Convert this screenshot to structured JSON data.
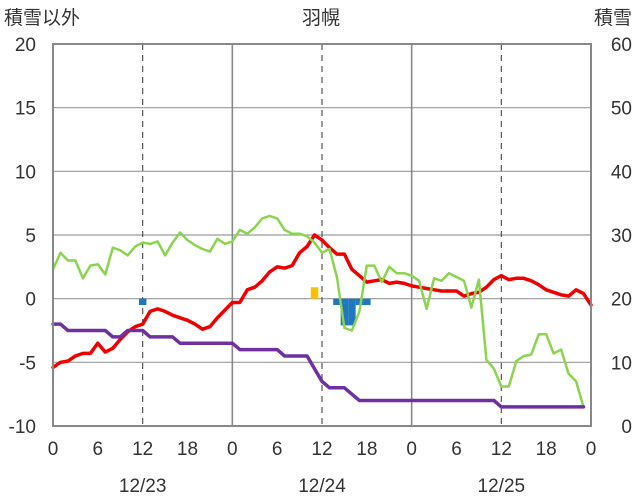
{
  "chart_data": {
    "type": "line",
    "title": "羽幌",
    "left_axis_label": "積雪以外",
    "right_axis_label": "積雪",
    "left_ylim": [
      -10,
      20
    ],
    "right_ylim": [
      0,
      60
    ],
    "left_ticks": [
      "-10",
      "-5",
      "0",
      "5",
      "10",
      "15",
      "20"
    ],
    "right_ticks": [
      "0",
      "10",
      "20",
      "30",
      "40",
      "50",
      "60"
    ],
    "xlim": [
      0,
      72
    ],
    "x_ticks": [
      0,
      6,
      12,
      18,
      24,
      30,
      36,
      42,
      48,
      54,
      60,
      66,
      72
    ],
    "x_tick_labels": [
      "0",
      "6",
      "12",
      "18",
      "0",
      "6",
      "12",
      "18",
      "0",
      "6",
      "12",
      "18",
      "0"
    ],
    "date_labels": [
      {
        "x": 12,
        "text": "12/23"
      },
      {
        "x": 36,
        "text": "12/24"
      },
      {
        "x": 60,
        "text": "12/25"
      }
    ],
    "grid": {
      "major_x": [
        24,
        48
      ],
      "dashed_x": [
        12,
        36,
        60
      ],
      "horizontal": true
    },
    "series": [
      {
        "axis": "left",
        "color": "#ee0000",
        "width": 3.5,
        "points": [
          [
            0,
            -5.4
          ],
          [
            1,
            -5.0
          ],
          [
            2,
            -4.9
          ],
          [
            3,
            -4.5
          ],
          [
            4,
            -4.3
          ],
          [
            5,
            -4.3
          ],
          [
            6,
            -3.5
          ],
          [
            7,
            -4.2
          ],
          [
            8,
            -3.9
          ],
          [
            9,
            -3.2
          ],
          [
            10,
            -2.6
          ],
          [
            11,
            -2.2
          ],
          [
            12,
            -2.0
          ],
          [
            13,
            -1.0
          ],
          [
            14,
            -0.8
          ],
          [
            15,
            -1.0
          ],
          [
            16,
            -1.3
          ],
          [
            17,
            -1.5
          ],
          [
            18,
            -1.7
          ],
          [
            19,
            -2.0
          ],
          [
            20,
            -2.4
          ],
          [
            21,
            -2.2
          ],
          [
            22,
            -1.5
          ],
          [
            23,
            -0.9
          ],
          [
            24,
            -0.3
          ],
          [
            25,
            -0.3
          ],
          [
            26,
            0.7
          ],
          [
            27,
            0.9
          ],
          [
            28,
            1.4
          ],
          [
            29,
            2.1
          ],
          [
            30,
            2.5
          ],
          [
            31,
            2.4
          ],
          [
            32,
            2.6
          ],
          [
            33,
            3.6
          ],
          [
            34,
            4.1
          ],
          [
            35,
            5.0
          ],
          [
            36,
            4.6
          ],
          [
            37,
            4.0
          ],
          [
            38,
            3.5
          ],
          [
            39,
            3.5
          ],
          [
            40,
            2.3
          ],
          [
            41,
            1.8
          ],
          [
            42,
            1.3
          ],
          [
            43,
            1.4
          ],
          [
            44,
            1.5
          ],
          [
            45,
            1.2
          ],
          [
            46,
            1.3
          ],
          [
            47,
            1.2
          ],
          [
            48,
            1.0
          ],
          [
            49,
            0.9
          ],
          [
            50,
            0.8
          ],
          [
            51,
            0.7
          ],
          [
            52,
            0.6
          ],
          [
            53,
            0.6
          ],
          [
            54,
            0.6
          ],
          [
            55,
            0.2
          ],
          [
            56,
            0.4
          ],
          [
            57,
            0.5
          ],
          [
            58,
            0.9
          ],
          [
            59,
            1.5
          ],
          [
            60,
            1.8
          ],
          [
            61,
            1.5
          ],
          [
            62,
            1.6
          ],
          [
            63,
            1.6
          ],
          [
            64,
            1.4
          ],
          [
            65,
            1.1
          ],
          [
            66,
            0.7
          ],
          [
            67,
            0.5
          ],
          [
            68,
            0.3
          ],
          [
            69,
            0.2
          ],
          [
            70,
            0.7
          ],
          [
            71,
            0.4
          ],
          [
            72,
            -0.5
          ]
        ]
      },
      {
        "axis": "left",
        "color": "#8bd44e",
        "width": 2.5,
        "points": [
          [
            0,
            2.3
          ],
          [
            1,
            3.6
          ],
          [
            2,
            3.0
          ],
          [
            3,
            3.0
          ],
          [
            4,
            1.6
          ],
          [
            5,
            2.6
          ],
          [
            6,
            2.7
          ],
          [
            7,
            1.9
          ],
          [
            8,
            4.0
          ],
          [
            9,
            3.8
          ],
          [
            10,
            3.4
          ],
          [
            11,
            4.1
          ],
          [
            12,
            4.4
          ],
          [
            13,
            4.3
          ],
          [
            14,
            4.5
          ],
          [
            15,
            3.4
          ],
          [
            16,
            4.4
          ],
          [
            17,
            5.2
          ],
          [
            18,
            4.6
          ],
          [
            19,
            4.2
          ],
          [
            20,
            3.9
          ],
          [
            21,
            3.7
          ],
          [
            22,
            4.7
          ],
          [
            23,
            4.3
          ],
          [
            24,
            4.5
          ],
          [
            25,
            5.4
          ],
          [
            26,
            5.1
          ],
          [
            27,
            5.6
          ],
          [
            28,
            6.3
          ],
          [
            29,
            6.5
          ],
          [
            30,
            6.3
          ],
          [
            31,
            5.4
          ],
          [
            32,
            5.1
          ],
          [
            33,
            5.1
          ],
          [
            34,
            4.9
          ],
          [
            35,
            4.4
          ],
          [
            36,
            3.6
          ],
          [
            37,
            3.9
          ],
          [
            38,
            1.7
          ],
          [
            39,
            -2.3
          ],
          [
            40,
            -2.5
          ],
          [
            41,
            -1.0
          ],
          [
            42,
            2.6
          ],
          [
            43,
            2.6
          ],
          [
            44,
            1.3
          ],
          [
            45,
            2.5
          ],
          [
            46,
            2.0
          ],
          [
            47,
            2.0
          ],
          [
            48,
            1.8
          ],
          [
            49,
            1.4
          ],
          [
            50,
            -0.8
          ],
          [
            51,
            1.6
          ],
          [
            52,
            1.4
          ],
          [
            53,
            2.0
          ],
          [
            54,
            1.7
          ],
          [
            55,
            1.4
          ],
          [
            56,
            -0.7
          ],
          [
            57,
            1.5
          ],
          [
            58,
            -4.8
          ],
          [
            59,
            -5.5
          ],
          [
            60,
            -6.9
          ],
          [
            61,
            -6.9
          ],
          [
            62,
            -4.9
          ],
          [
            63,
            -4.5
          ],
          [
            64,
            -4.4
          ],
          [
            65,
            -2.8
          ],
          [
            66,
            -2.8
          ],
          [
            67,
            -4.3
          ],
          [
            68,
            -4.0
          ],
          [
            69,
            -5.9
          ],
          [
            70,
            -6.5
          ],
          [
            71,
            -8.5
          ]
        ]
      },
      {
        "axis": "left",
        "color": "#7030a0",
        "width": 3.5,
        "points": [
          [
            0,
            -2.0
          ],
          [
            1,
            -2.0
          ],
          [
            2,
            -2.5
          ],
          [
            3,
            -2.5
          ],
          [
            4,
            -2.5
          ],
          [
            5,
            -2.5
          ],
          [
            6,
            -2.5
          ],
          [
            7,
            -2.5
          ],
          [
            8,
            -3.0
          ],
          [
            9,
            -3.0
          ],
          [
            10,
            -2.5
          ],
          [
            11,
            -2.5
          ],
          [
            12,
            -2.5
          ],
          [
            13,
            -3.0
          ],
          [
            14,
            -3.0
          ],
          [
            15,
            -3.0
          ],
          [
            16,
            -3.0
          ],
          [
            17,
            -3.5
          ],
          [
            18,
            -3.5
          ],
          [
            19,
            -3.5
          ],
          [
            20,
            -3.5
          ],
          [
            21,
            -3.5
          ],
          [
            22,
            -3.5
          ],
          [
            23,
            -3.5
          ],
          [
            24,
            -3.5
          ],
          [
            25,
            -4.0
          ],
          [
            26,
            -4.0
          ],
          [
            27,
            -4.0
          ],
          [
            28,
            -4.0
          ],
          [
            29,
            -4.0
          ],
          [
            30,
            -4.0
          ],
          [
            31,
            -4.5
          ],
          [
            32,
            -4.5
          ],
          [
            33,
            -4.5
          ],
          [
            34,
            -4.5
          ],
          [
            35,
            -5.5
          ],
          [
            36,
            -6.5
          ],
          [
            37,
            -7.0
          ],
          [
            38,
            -7.0
          ],
          [
            39,
            -7.0
          ],
          [
            40,
            -7.5
          ],
          [
            41,
            -8.0
          ],
          [
            42,
            -8.0
          ],
          [
            43,
            -8.0
          ],
          [
            44,
            -8.0
          ],
          [
            45,
            -8.0
          ],
          [
            46,
            -8.0
          ],
          [
            47,
            -8.0
          ],
          [
            48,
            -8.0
          ],
          [
            49,
            -8.0
          ],
          [
            50,
            -8.0
          ],
          [
            51,
            -8.0
          ],
          [
            52,
            -8.0
          ],
          [
            53,
            -8.0
          ],
          [
            54,
            -8.0
          ],
          [
            55,
            -8.0
          ],
          [
            56,
            -8.0
          ],
          [
            57,
            -8.0
          ],
          [
            58,
            -8.0
          ],
          [
            59,
            -8.0
          ],
          [
            60,
            -8.5
          ],
          [
            61,
            -8.5
          ],
          [
            62,
            -8.5
          ],
          [
            63,
            -8.5
          ],
          [
            64,
            -8.5
          ],
          [
            65,
            -8.5
          ],
          [
            66,
            -8.5
          ],
          [
            67,
            -8.5
          ],
          [
            68,
            -8.5
          ],
          [
            69,
            -8.5
          ],
          [
            70,
            -8.5
          ],
          [
            71,
            -8.5
          ]
        ]
      }
    ],
    "bars": [
      {
        "x": 12,
        "value": -0.5,
        "color": "#1f77c0"
      },
      {
        "x": 35,
        "value": 0.9,
        "color": "#ffc000"
      },
      {
        "x": 38,
        "value": -0.5,
        "color": "#1f77c0"
      },
      {
        "x": 39,
        "value": -2.1,
        "color": "#1f77c0"
      },
      {
        "x": 40,
        "value": -2.1,
        "color": "#1f77c0"
      },
      {
        "x": 41,
        "value": -0.5,
        "color": "#1f77c0"
      },
      {
        "x": 42,
        "value": -0.5,
        "color": "#1f77c0"
      }
    ]
  }
}
